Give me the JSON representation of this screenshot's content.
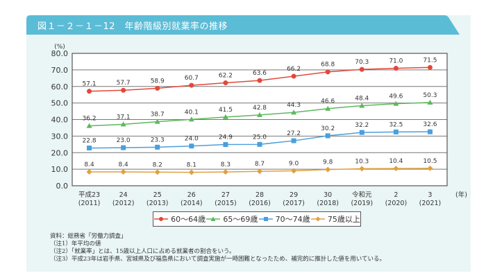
{
  "header": {
    "title": "図１－２－１－12　年齢階級別就業率の推移",
    "color": "#5bbcd6"
  },
  "chart_data": {
    "type": "line",
    "title": "年齢階級別就業率の推移",
    "ylabel": "(%)",
    "xlabel": "(年)",
    "ylim": [
      0,
      80
    ],
    "yticks": [
      0,
      10,
      20,
      30,
      40,
      50,
      60,
      70,
      80
    ],
    "ytick_labels": [
      "0.0",
      "10.0",
      "20.0",
      "30.0",
      "40.0",
      "50.0",
      "60.0",
      "70.0",
      "80.0"
    ],
    "grid": true,
    "categories": [
      {
        "era": "平成23",
        "year": "(2011)"
      },
      {
        "era": "24",
        "year": "(2012)"
      },
      {
        "era": "25",
        "year": "(2013)"
      },
      {
        "era": "26",
        "year": "(2014)"
      },
      {
        "era": "27",
        "year": "(2015)"
      },
      {
        "era": "28",
        "year": "(2016)"
      },
      {
        "era": "29",
        "year": "(2017)"
      },
      {
        "era": "30",
        "year": "(2018)"
      },
      {
        "era": "令和元",
        "year": "(2019)"
      },
      {
        "era": "2",
        "year": "(2020)"
      },
      {
        "era": "3",
        "year": "(2021)"
      }
    ],
    "series": [
      {
        "name": "60～64歳",
        "color": "#e2483a",
        "marker": "circle",
        "values": [
          57.1,
          57.7,
          58.9,
          60.7,
          62.2,
          63.6,
          66.2,
          68.8,
          70.3,
          71.0,
          71.5
        ]
      },
      {
        "name": "65～69歳",
        "color": "#5cb85c",
        "marker": "triangle",
        "values": [
          36.2,
          37.1,
          38.7,
          40.1,
          41.5,
          42.8,
          44.3,
          46.6,
          48.4,
          49.6,
          50.3
        ]
      },
      {
        "name": "70～74歳",
        "color": "#4a9fdc",
        "marker": "square",
        "values": [
          22.8,
          23.0,
          23.3,
          24.0,
          24.9,
          25.0,
          27.2,
          30.2,
          32.2,
          32.5,
          32.6
        ]
      },
      {
        "name": "75歳以上",
        "color": "#e0a040",
        "marker": "diamond",
        "values": [
          8.4,
          8.4,
          8.2,
          8.1,
          8.3,
          8.7,
          9.0,
          9.8,
          10.3,
          10.4,
          10.5
        ]
      }
    ],
    "legend_position": "bottom-center"
  },
  "legend": {
    "items": [
      "60～64歳",
      "65～69歳",
      "70～74歳",
      "75歳以上"
    ]
  },
  "notes": [
    "資料：総務省「労働力調査」",
    "（注1）年平均の値",
    "（注2）「就業率」とは、15歳以上人口に占める就業者の割合をいう。",
    "（注3）平成23年は岩手県、宮城県及び福島県において調査実施が一時困難となったため、補完的に推計した値を用いている。"
  ]
}
